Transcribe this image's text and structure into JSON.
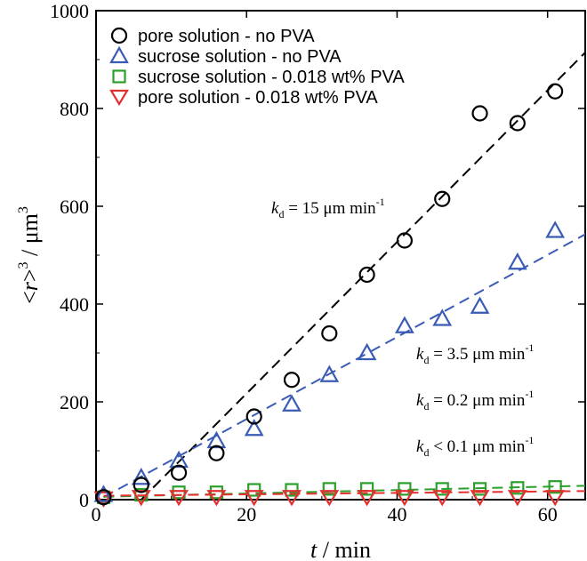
{
  "chart_data": {
    "type": "scatter",
    "xlabel": {
      "italic": "t",
      "rest": " / min"
    },
    "ylabel": {
      "open": "<",
      "italic": "r",
      "close": ">",
      "sup": "3",
      "rest": " / μm",
      "sup2": "3"
    },
    "xlim": [
      0,
      65
    ],
    "ylim": [
      0,
      1000
    ],
    "xticks": [
      0,
      20,
      40,
      60
    ],
    "yticks": [
      0,
      200,
      400,
      600,
      800,
      1000
    ],
    "legend_position": "top-left",
    "series": [
      {
        "name": "pore solution - no PVA",
        "marker": "circle",
        "color": "#000000",
        "x": [
          1,
          6,
          11,
          16,
          21,
          26,
          31,
          36,
          41,
          46,
          51,
          56,
          61
        ],
        "y": [
          5,
          30,
          55,
          95,
          170,
          245,
          340,
          460,
          530,
          615,
          790,
          770,
          835
        ],
        "fit": {
          "x0": 6,
          "y0": 0,
          "slope": 15.5,
          "color": "#000000"
        }
      },
      {
        "name": "sucrose solution - no PVA",
        "marker": "triangle-up",
        "color": "#3a5bb5",
        "x": [
          1,
          6,
          11,
          16,
          21,
          26,
          31,
          36,
          41,
          46,
          51,
          56,
          61
        ],
        "y": [
          10,
          45,
          80,
          120,
          145,
          195,
          255,
          300,
          355,
          370,
          395,
          485,
          550
        ],
        "fit": {
          "x0": 1,
          "y0": 5,
          "slope": 8.4,
          "color": "#3a5bb5"
        }
      },
      {
        "name": "sucrose solution - 0.018 wt% PVA",
        "marker": "square",
        "color": "#2aa02a",
        "x": [
          1,
          6,
          11,
          16,
          21,
          26,
          31,
          36,
          41,
          46,
          51,
          56,
          61
        ],
        "y": [
          5,
          10,
          15,
          15,
          20,
          20,
          22,
          22,
          22,
          22,
          22,
          24,
          26
        ],
        "fit": {
          "x0": 1,
          "y0": 6,
          "slope": 0.35,
          "color": "#2aa02a"
        }
      },
      {
        "name": "pore solution - 0.018 wt% PVA",
        "marker": "triangle-down",
        "color": "#e23030",
        "x": [
          1,
          6,
          11,
          16,
          21,
          26,
          31,
          36,
          41,
          46,
          51,
          56,
          61
        ],
        "y": [
          2,
          5,
          5,
          5,
          5,
          5,
          5,
          5,
          5,
          5,
          5,
          5,
          5
        ],
        "fit": {
          "x0": 1,
          "y0": 8,
          "slope": 0.15,
          "color": "#e23030"
        }
      }
    ],
    "annotations": [
      {
        "k": "k",
        "sub": "d",
        "text": " = 15 μm min",
        "sup": "-1"
      },
      {
        "k": "k",
        "sub": "d",
        "text": " = 3.5 μm min",
        "sup": "-1"
      },
      {
        "k": "k",
        "sub": "d",
        "text": " = 0.2 μm min",
        "sup": "-1"
      },
      {
        "k": "k",
        "sub": "d",
        "text": " < 0.1 μm min",
        "sup": "-1"
      }
    ]
  }
}
